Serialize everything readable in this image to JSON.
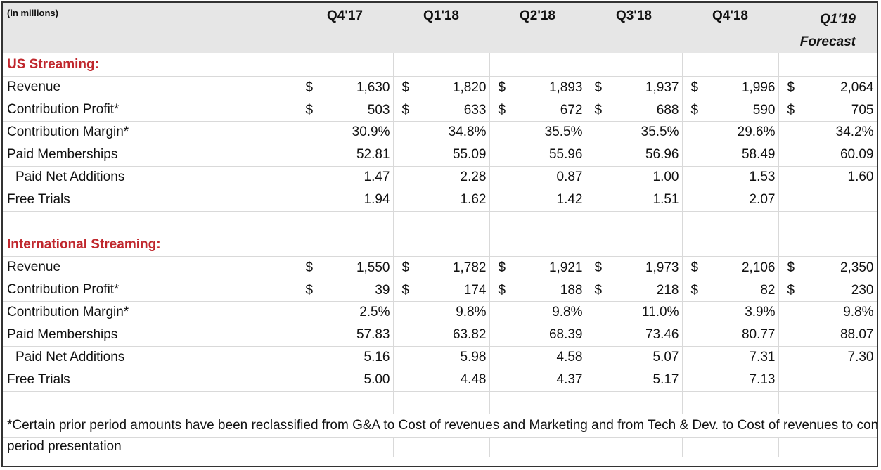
{
  "header": {
    "unit_label": "(in millions)",
    "quarters": [
      "Q4'17",
      "Q1'18",
      "Q2'18",
      "Q3'18",
      "Q4'18"
    ],
    "forecast_quarter": "Q1'19",
    "forecast_label": "Forecast"
  },
  "us": {
    "title": "US Streaming:",
    "revenue": {
      "label": "Revenue",
      "currency": "$",
      "values": [
        "1,630",
        "1,820",
        "1,893",
        "1,937",
        "1,996",
        "2,064"
      ]
    },
    "contribution_profit": {
      "label": "Contribution Profit*",
      "currency": "$",
      "values": [
        "503",
        "633",
        "672",
        "688",
        "590",
        "705"
      ]
    },
    "contribution_margin": {
      "label": "Contribution Margin*",
      "values": [
        "30.9%",
        "34.8%",
        "35.5%",
        "35.5%",
        "29.6%",
        "34.2%"
      ]
    },
    "paid_memberships": {
      "label": "Paid Memberships",
      "values": [
        "52.81",
        "55.09",
        "55.96",
        "56.96",
        "58.49",
        "60.09"
      ]
    },
    "paid_net_additions": {
      "label": "Paid Net Additions",
      "values": [
        "1.47",
        "2.28",
        "0.87",
        "1.00",
        "1.53",
        "1.60"
      ]
    },
    "free_trials": {
      "label": "Free Trials",
      "values": [
        "1.94",
        "1.62",
        "1.42",
        "1.51",
        "2.07",
        ""
      ]
    }
  },
  "intl": {
    "title": "International Streaming:",
    "revenue": {
      "label": "Revenue",
      "currency": "$",
      "values": [
        "1,550",
        "1,782",
        "1,921",
        "1,973",
        "2,106",
        "2,350"
      ]
    },
    "contribution_profit": {
      "label": "Contribution Profit*",
      "currency": "$",
      "values": [
        "39",
        "174",
        "188",
        "218",
        "82",
        "230"
      ]
    },
    "contribution_margin": {
      "label": "Contribution Margin*",
      "values": [
        "2.5%",
        "9.8%",
        "9.8%",
        "11.0%",
        "3.9%",
        "9.8%"
      ]
    },
    "paid_memberships": {
      "label": "Paid Memberships",
      "values": [
        "57.83",
        "63.82",
        "68.39",
        "73.46",
        "80.77",
        "88.07"
      ]
    },
    "paid_net_additions": {
      "label": "Paid Net Additions",
      "values": [
        "5.16",
        "5.98",
        "4.58",
        "5.07",
        "7.31",
        "7.30"
      ]
    },
    "free_trials": {
      "label": "Free Trials",
      "values": [
        "5.00",
        "4.48",
        "4.37",
        "5.17",
        "7.13",
        ""
      ]
    }
  },
  "footnote": {
    "line1": "*Certain prior period amounts have been reclassified from G&A to Cost of revenues and Marketing and from Tech & Dev. to Cost of revenues to conform to current",
    "line2": "period presentation"
  }
}
